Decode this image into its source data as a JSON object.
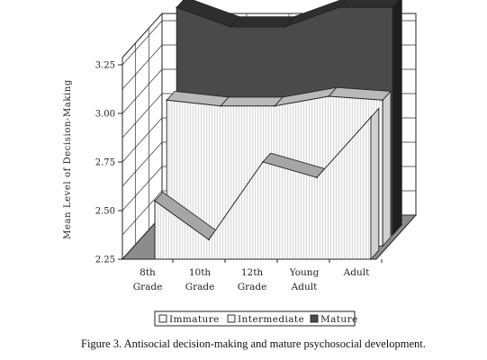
{
  "chart_data": {
    "type": "area",
    "style": "3d-ribbon",
    "title": "",
    "ylabel": "Mean Level of Decision-Making",
    "xlabel": "",
    "ylim": [
      2.25,
      3.35
    ],
    "yticks": [
      "2.25",
      "2.50",
      "2.75",
      "3.00",
      "3.25"
    ],
    "categories": [
      "8th Grade",
      "10th Grade",
      "12th Grade",
      "Young Adult",
      "Adult"
    ],
    "category_lines": [
      [
        "8th",
        "Grade"
      ],
      [
        "10th",
        "Grade"
      ],
      [
        "12th",
        "Grade"
      ],
      [
        "Young",
        "Adult"
      ],
      [
        "Adult",
        ""
      ]
    ],
    "series": [
      {
        "name": "Immature",
        "values": [
          2.55,
          2.35,
          2.75,
          2.67,
          2.98
        ],
        "color": "#f4f4f4"
      },
      {
        "name": "Intermediate",
        "values": [
          3.0,
          2.97,
          2.97,
          3.02,
          3.0
        ],
        "color": "#e9e9e9"
      },
      {
        "name": "Mature",
        "values": [
          3.42,
          3.32,
          3.32,
          3.42,
          3.42
        ],
        "color": "#4a4a4a"
      }
    ],
    "legend_position": "bottom",
    "grid": true
  },
  "caption": "Figure 3.  Antisocial decision-making and mature psychosocial development."
}
